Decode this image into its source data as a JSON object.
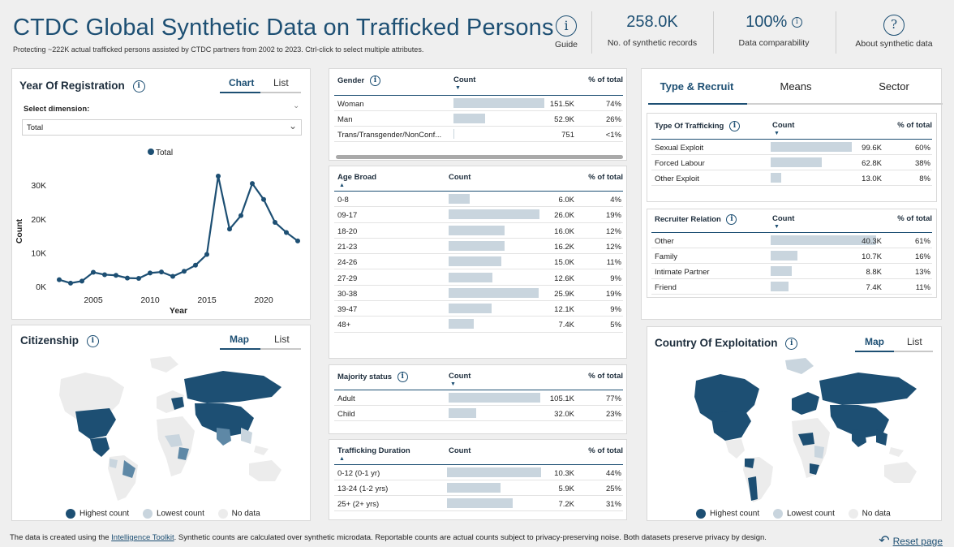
{
  "header": {
    "title": "CTDC Global Synthetic Data on Trafficked Persons",
    "subtitle": "Protecting ~222K actual trafficked persons assisted by CTDC partners from 2002 to 2023. Ctrl-click to select multiple attributes.",
    "guide_label": "Guide",
    "records_value": "258.0K",
    "records_label": "No. of synthetic records",
    "comparability_value": "100%",
    "comparability_label": "Data comparability",
    "about_label": "About synthetic data",
    "guide_icon": "i",
    "about_icon": "?"
  },
  "year_panel": {
    "title": "Year Of Registration",
    "toggle_on": "Chart",
    "toggle_off": "List",
    "select_label": "Select dimension:",
    "select_value": "Total"
  },
  "chart_data": {
    "type": "line",
    "title": "",
    "xlabel": "Year",
    "ylabel": "Count",
    "series": [
      {
        "name": "Total",
        "x": [
          2002,
          2003,
          2004,
          2005,
          2006,
          2007,
          2008,
          2009,
          2010,
          2011,
          2012,
          2013,
          2014,
          2015,
          2016,
          2017,
          2018,
          2019,
          2020,
          2021,
          2022,
          2023
        ],
        "y": [
          2000,
          1000,
          1600,
          4200,
          3500,
          3300,
          2500,
          2400,
          4000,
          4300,
          3000,
          4500,
          6300,
          9500,
          32700,
          17000,
          21000,
          30500,
          25800,
          19000,
          16000,
          13500
        ]
      }
    ],
    "xlim": [
      2002,
      2023
    ],
    "ylim": [
      0,
      32700
    ],
    "xticks": [
      2005,
      2010,
      2015,
      2020
    ],
    "yticks": [
      0,
      10000,
      20000,
      30000
    ],
    "ytick_labels": [
      "0K",
      "10K",
      "20K",
      "30K"
    ],
    "legend": "top-center",
    "grid": false,
    "color": "#1d4f73"
  },
  "citizenship": {
    "title": "Citizenship",
    "toggle_on": "Map",
    "toggle_off": "List",
    "legend": [
      "Highest count",
      "Lowest count",
      "No data"
    ]
  },
  "exploitation": {
    "title": "Country Of Exploitation",
    "toggle_on": "Map",
    "toggle_off": "List",
    "legend": [
      "Highest count",
      "Lowest count",
      "No data"
    ]
  },
  "gender": {
    "title": "Gender",
    "count_header": "Count",
    "pct_header": "% of total",
    "rows": [
      {
        "label": "Woman",
        "count": "151.5K",
        "pct": "74%",
        "frac": 1.0
      },
      {
        "label": "Man",
        "count": "52.9K",
        "pct": "26%",
        "frac": 0.35
      },
      {
        "label": "Trans/Transgender/NonConf...",
        "count": "751",
        "pct": "<1%",
        "frac": 0.005
      }
    ]
  },
  "age": {
    "title": "Age Broad",
    "count_header": "Count",
    "pct_header": "% of total",
    "rows": [
      {
        "label": "0-8",
        "count": "6.0K",
        "pct": "4%",
        "frac": 0.23
      },
      {
        "label": "09-17",
        "count": "26.0K",
        "pct": "19%",
        "frac": 1.0
      },
      {
        "label": "18-20",
        "count": "16.0K",
        "pct": "12%",
        "frac": 0.62
      },
      {
        "label": "21-23",
        "count": "16.2K",
        "pct": "12%",
        "frac": 0.62
      },
      {
        "label": "24-26",
        "count": "15.0K",
        "pct": "11%",
        "frac": 0.58
      },
      {
        "label": "27-29",
        "count": "12.6K",
        "pct": "9%",
        "frac": 0.48
      },
      {
        "label": "30-38",
        "count": "25.9K",
        "pct": "19%",
        "frac": 0.99
      },
      {
        "label": "39-47",
        "count": "12.1K",
        "pct": "9%",
        "frac": 0.47
      },
      {
        "label": "48+",
        "count": "7.4K",
        "pct": "5%",
        "frac": 0.28
      }
    ]
  },
  "majority": {
    "title": "Majority status",
    "count_header": "Count",
    "pct_header": "% of total",
    "rows": [
      {
        "label": "Adult",
        "count": "105.1K",
        "pct": "77%",
        "frac": 1.0
      },
      {
        "label": "Child",
        "count": "32.0K",
        "pct": "23%",
        "frac": 0.3
      }
    ]
  },
  "duration": {
    "title": "Trafficking Duration",
    "count_header": "Count",
    "pct_header": "% of total",
    "rows": [
      {
        "label": "0-12 (0-1 yr)",
        "count": "10.3K",
        "pct": "44%",
        "frac": 1.0
      },
      {
        "label": "13-24 (1-2 yrs)",
        "count": "5.9K",
        "pct": "25%",
        "frac": 0.57
      },
      {
        "label": "25+ (2+ yrs)",
        "count": "7.2K",
        "pct": "31%",
        "frac": 0.7
      }
    ]
  },
  "tabs": [
    "Type & Recruit",
    "Means",
    "Sector"
  ],
  "type": {
    "title": "Type Of Trafficking",
    "count_header": "Count",
    "pct_header": "% of total",
    "rows": [
      {
        "label": "Sexual Exploit",
        "count": "99.6K",
        "pct": "60%",
        "frac": 1.0
      },
      {
        "label": "Forced Labour",
        "count": "62.8K",
        "pct": "38%",
        "frac": 0.63
      },
      {
        "label": "Other Exploit",
        "count": "13.0K",
        "pct": "8%",
        "frac": 0.13
      }
    ]
  },
  "recruiter": {
    "title": "Recruiter Relation",
    "count_header": "Count",
    "pct_header": "% of total",
    "rows": [
      {
        "label": "Other",
        "count": "40.3K",
        "pct": "61%",
        "frac": 1.0
      },
      {
        "label": "Family",
        "count": "10.7K",
        "pct": "16%",
        "frac": 0.25
      },
      {
        "label": "Intimate Partner",
        "count": "8.8K",
        "pct": "13%",
        "frac": 0.2
      },
      {
        "label": "Friend",
        "count": "7.4K",
        "pct": "11%",
        "frac": 0.17
      }
    ]
  },
  "footer": {
    "text_before": "The data is created using the ",
    "link": "Intelligence Toolkit",
    "text_after": ". Synthetic counts are calculated over synthetic microdata. Reportable counts are actual counts subject to privacy-preserving noise. Both datasets preserve privacy by design.",
    "reset_label": "Reset page"
  },
  "colors": {
    "dark": "#1d4f73",
    "mid": "#5e88a6",
    "light": "#c9d5de",
    "nodata": "#ececec"
  }
}
